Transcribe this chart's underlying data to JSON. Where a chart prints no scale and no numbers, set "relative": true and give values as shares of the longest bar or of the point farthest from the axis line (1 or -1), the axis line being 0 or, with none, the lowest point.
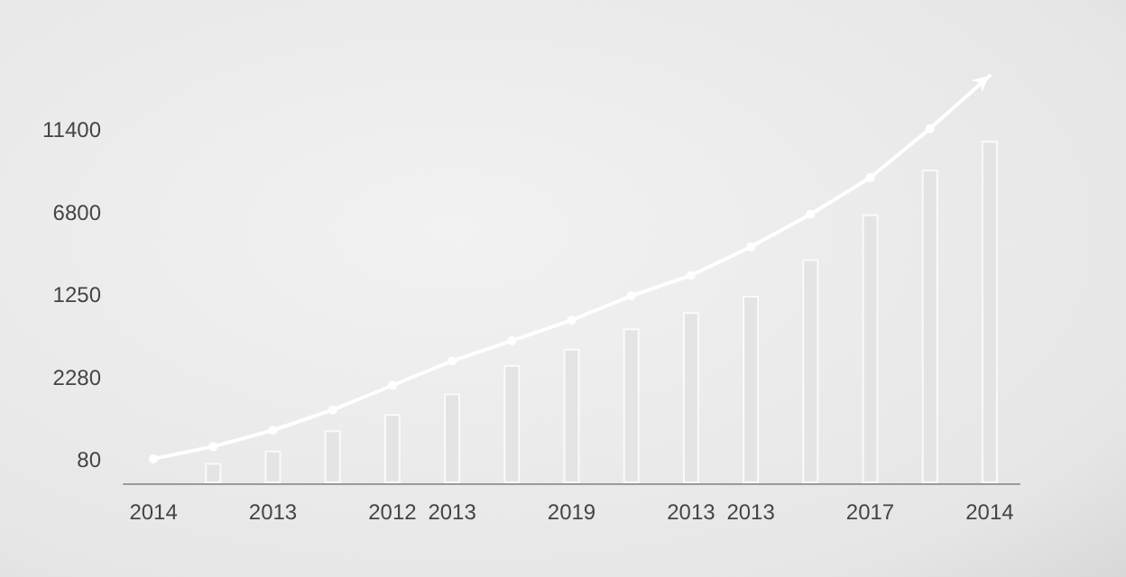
{
  "chart_data": {
    "type": "bar",
    "relative": true,
    "categories": [
      "2014",
      null,
      "2013",
      null,
      "2012",
      "2013",
      null,
      "2019",
      null,
      "2013",
      "2013",
      null,
      "2017",
      null,
      "2014"
    ],
    "annotations": [
      "11400",
      "6800",
      "1250",
      "2280",
      "80"
    ],
    "series": [
      {
        "color": "#e4e4e4",
        "values": [
          null,
          0.05,
          0.08,
          0.13,
          0.17,
          0.22,
          0.29,
          0.33,
          0.38,
          0.42,
          0.46,
          0.55,
          0.66,
          0.77,
          0.84
        ]
      },
      {
        "type": "line",
        "color": "#ffffff",
        "marker": "circle",
        "values": [
          0.06,
          0.09,
          0.13,
          0.18,
          0.24,
          0.3,
          0.35,
          0.4,
          0.46,
          0.51,
          0.58,
          0.66,
          0.75,
          0.87,
          1
        ]
      }
    ]
  }
}
